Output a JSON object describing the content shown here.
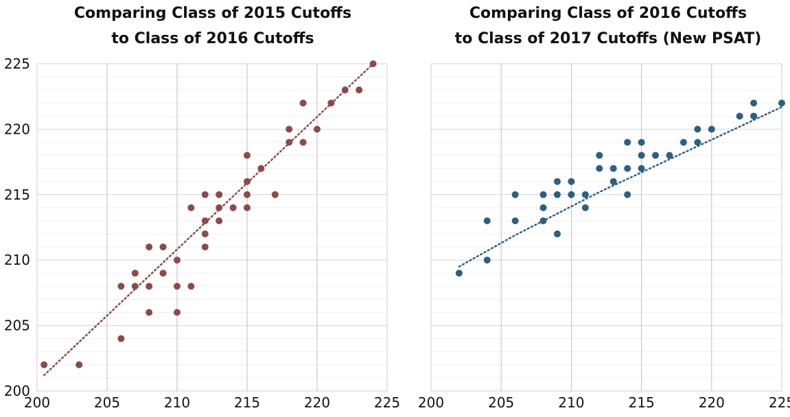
{
  "chart_data": [
    {
      "type": "scatter",
      "title_lines": [
        "Comparing Class of 2015 Cutoffs",
        "to Class of 2016 Cutoffs"
      ],
      "xlim": [
        200,
        225
      ],
      "ylim": [
        200,
        225
      ],
      "xticks": [
        "200",
        "205",
        "210",
        "215",
        "220",
        "225"
      ],
      "yticks": [
        "200",
        "205",
        "210",
        "215",
        "220",
        "225"
      ],
      "grid": true,
      "color": "#8a4b4b",
      "points": [
        {
          "x": 200.5,
          "y": 202
        },
        {
          "x": 203,
          "y": 202
        },
        {
          "x": 206,
          "y": 204
        },
        {
          "x": 206,
          "y": 208
        },
        {
          "x": 207,
          "y": 208
        },
        {
          "x": 207,
          "y": 209
        },
        {
          "x": 208,
          "y": 206
        },
        {
          "x": 208,
          "y": 208
        },
        {
          "x": 208,
          "y": 211
        },
        {
          "x": 209,
          "y": 209
        },
        {
          "x": 209,
          "y": 211
        },
        {
          "x": 210,
          "y": 206
        },
        {
          "x": 210,
          "y": 208
        },
        {
          "x": 210,
          "y": 210
        },
        {
          "x": 211,
          "y": 208
        },
        {
          "x": 211,
          "y": 214
        },
        {
          "x": 212,
          "y": 211
        },
        {
          "x": 212,
          "y": 212
        },
        {
          "x": 212,
          "y": 213
        },
        {
          "x": 212,
          "y": 215
        },
        {
          "x": 213,
          "y": 213
        },
        {
          "x": 213,
          "y": 214
        },
        {
          "x": 213,
          "y": 215
        },
        {
          "x": 214,
          "y": 214
        },
        {
          "x": 215,
          "y": 214
        },
        {
          "x": 215,
          "y": 215
        },
        {
          "x": 215,
          "y": 216
        },
        {
          "x": 215,
          "y": 218
        },
        {
          "x": 216,
          "y": 217
        },
        {
          "x": 217,
          "y": 215
        },
        {
          "x": 218,
          "y": 219
        },
        {
          "x": 218,
          "y": 220
        },
        {
          "x": 219,
          "y": 219
        },
        {
          "x": 219,
          "y": 222
        },
        {
          "x": 220,
          "y": 220
        },
        {
          "x": 221,
          "y": 222
        },
        {
          "x": 222,
          "y": 223
        },
        {
          "x": 223,
          "y": 223
        },
        {
          "x": 224,
          "y": 225
        }
      ],
      "trendline": {
        "style": "dotted",
        "kind": "linear",
        "x": [
          200.5,
          224
        ],
        "y": [
          201.2,
          225
        ]
      }
    },
    {
      "type": "scatter",
      "title_lines": [
        "Comparing Class of 2016 Cutoffs",
        "to Class of 2017 Cutoffs (New PSAT)"
      ],
      "xlim": [
        200,
        225
      ],
      "ylim": [
        200,
        225
      ],
      "xticks": [
        "200",
        "205",
        "210",
        "215",
        "220",
        "225"
      ],
      "yticks": [],
      "grid": true,
      "color": "#2e5f7f",
      "points": [
        {
          "x": 202,
          "y": 209
        },
        {
          "x": 204,
          "y": 210
        },
        {
          "x": 204,
          "y": 213
        },
        {
          "x": 206,
          "y": 213
        },
        {
          "x": 206,
          "y": 215
        },
        {
          "x": 208,
          "y": 213
        },
        {
          "x": 208,
          "y": 214
        },
        {
          "x": 208,
          "y": 215
        },
        {
          "x": 209,
          "y": 212
        },
        {
          "x": 209,
          "y": 215
        },
        {
          "x": 209,
          "y": 216
        },
        {
          "x": 210,
          "y": 215
        },
        {
          "x": 210,
          "y": 216
        },
        {
          "x": 211,
          "y": 214
        },
        {
          "x": 211,
          "y": 215
        },
        {
          "x": 212,
          "y": 217
        },
        {
          "x": 212,
          "y": 218
        },
        {
          "x": 213,
          "y": 216
        },
        {
          "x": 213,
          "y": 217
        },
        {
          "x": 214,
          "y": 215
        },
        {
          "x": 214,
          "y": 217
        },
        {
          "x": 214,
          "y": 219
        },
        {
          "x": 215,
          "y": 217
        },
        {
          "x": 215,
          "y": 218
        },
        {
          "x": 215,
          "y": 219
        },
        {
          "x": 216,
          "y": 218
        },
        {
          "x": 217,
          "y": 218
        },
        {
          "x": 218,
          "y": 219
        },
        {
          "x": 219,
          "y": 219
        },
        {
          "x": 219,
          "y": 220
        },
        {
          "x": 220,
          "y": 220
        },
        {
          "x": 222,
          "y": 221
        },
        {
          "x": 223,
          "y": 221
        },
        {
          "x": 223,
          "y": 222
        },
        {
          "x": 225,
          "y": 222
        }
      ],
      "trendline": {
        "style": "dotted",
        "kind": "logarithmic",
        "x": [
          202,
          204,
          206,
          208,
          210,
          212,
          214,
          216,
          218,
          220,
          222,
          224,
          225
        ],
        "y": [
          209.5,
          210.7,
          211.9,
          213.0,
          214.1,
          215.2,
          216.2,
          217.2,
          218.2,
          219.2,
          220.2,
          221.2,
          221.7
        ]
      }
    }
  ]
}
